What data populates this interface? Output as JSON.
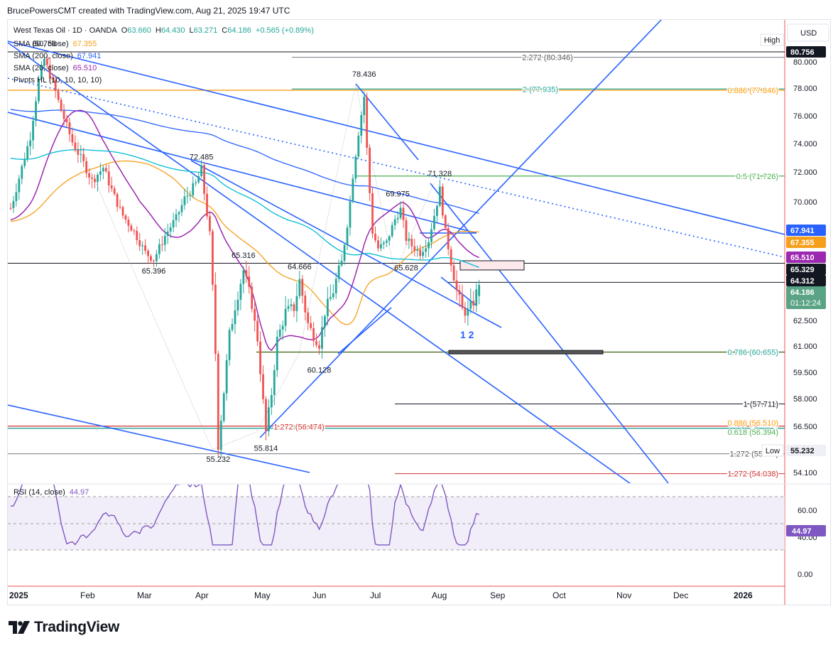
{
  "header": {
    "text": "BrucePowersCMT created with TradingView.com, Aug 21, 2025 19:47 UTC"
  },
  "brand": {
    "name": "TradingView",
    "logo_icon": "tradingview-logo-icon"
  },
  "colors": {
    "up": "#26a69a",
    "down": "#ef5350",
    "sma50": "#f59f1b",
    "sma200": "#2962ff",
    "sma20": "#9c27b0",
    "cyan": "#00bcd4",
    "trend": "#2962ff",
    "fib_orange": "#ff9800",
    "fib_green": "#4caf50",
    "fib_red": "#d32f2f",
    "rsi": "#7e57c2"
  },
  "legend": {
    "title": "West Texas Oil · 1D · OANDA",
    "o_label": "O",
    "o": "63.660",
    "h_label": "H",
    "h": "64.430",
    "l_label": "L",
    "l": "63.271",
    "c_label": "C",
    "c": "64.186",
    "chg": "+0.565 (+0.89%)",
    "sma50_label": "SMA (50, close)",
    "sma50_val": "67.355",
    "sma200_label": "SMA (200, close)",
    "sma200_val": "67.941",
    "sma20_label": "SMA (20, close)",
    "sma20_val": "65.510",
    "pivots_label": "Pivots HL (10, 10, 10, 10)"
  },
  "rsi_legend": {
    "label": "RSI (14, close)",
    "value": "44.97"
  },
  "chart_data": {
    "type": "candlestick",
    "symbol": "West Texas Oil",
    "interval": "1D",
    "exchange": "OANDA",
    "ohlc_last": {
      "open": 63.66,
      "high": 64.43,
      "low": 63.271,
      "close": 64.186,
      "change": 0.565,
      "change_pct": 0.89
    },
    "currency": "USD",
    "y_ticks": [
      80.0,
      78.0,
      76.0,
      74.0,
      72.0,
      70.0,
      62.5,
      61.0,
      59.5,
      58.0,
      56.5,
      54.1
    ],
    "x_ticks": [
      "2025",
      "Feb",
      "Mar",
      "Apr",
      "May",
      "Jun",
      "Jul",
      "Aug",
      "Sep",
      "Oct",
      "Nov",
      "Dec",
      "2026"
    ],
    "price_badges": [
      {
        "label": "80.756",
        "kind": "high"
      },
      {
        "label": "67.941",
        "kind": "sma200"
      },
      {
        "label": "67.355",
        "kind": "sma50"
      },
      {
        "label": "65.510",
        "kind": "sma20"
      },
      {
        "label": "65.329",
        "kind": "dark"
      },
      {
        "label": "64.312",
        "kind": "dark"
      },
      {
        "label": "64.186",
        "kind": "last"
      },
      {
        "label": "55.232",
        "kind": "low"
      }
    ],
    "countdown": "01:12:24",
    "high_tag": "High",
    "low_tag": "Low",
    "pivots": [
      {
        "label": "80.756",
        "t": 12,
        "price": 80.756,
        "pos": "above"
      },
      {
        "label": "72.485",
        "t": 68,
        "price": 72.485,
        "pos": "above"
      },
      {
        "label": "65.396",
        "t": 51,
        "price": 65.396,
        "pos": "below"
      },
      {
        "label": "65.316",
        "t": 83,
        "price": 65.316,
        "pos": "above"
      },
      {
        "label": "64.666",
        "t": 103,
        "price": 64.666,
        "pos": "above"
      },
      {
        "label": "55.232",
        "t": 74,
        "price": 55.232,
        "pos": "below"
      },
      {
        "label": "55.814",
        "t": 91,
        "price": 55.814,
        "pos": "below"
      },
      {
        "label": "60.128",
        "t": 110,
        "price": 60.128,
        "pos": "below"
      },
      {
        "label": "78.436",
        "t": 126,
        "price": 78.436,
        "pos": "above"
      },
      {
        "label": "69.975",
        "t": 138,
        "price": 69.975,
        "pos": "above"
      },
      {
        "label": "65.628",
        "t": 141,
        "price": 65.628,
        "pos": "below"
      },
      {
        "label": "71.328",
        "t": 153,
        "price": 71.328,
        "pos": "above"
      }
    ],
    "fib_levels": [
      {
        "label": "2.272 (80.346)",
        "price": 80.346,
        "color": "#555"
      },
      {
        "label": "2 (77.935)",
        "price": 77.935,
        "color": "#26a69a"
      },
      {
        "label": "0.886 (77.846)",
        "price": 77.846,
        "color": "#ff9800"
      },
      {
        "label": "0.5 (71.726)",
        "price": 71.726,
        "color": "#4caf50"
      },
      {
        "label": "0.786 (60.655)",
        "price": 60.655,
        "color": "#26a69a"
      },
      {
        "label": "1 (57.711)",
        "price": 57.711,
        "color": "#131722"
      },
      {
        "label": "1.272 (56.474)",
        "price": 56.474,
        "color": "#d32f2f"
      },
      {
        "label": "0.886 (56.510)",
        "price": 56.51,
        "color": "#ff9800"
      },
      {
        "label": "0.618 (56.394)",
        "price": 56.394,
        "color": "#4caf50"
      },
      {
        "label": "1.272 (55.0...)",
        "price": 55.05,
        "color": "#555"
      },
      {
        "label": "1.272 (54.038)",
        "price": 54.038,
        "color": "#d32f2f"
      }
    ],
    "wave_label": "1 2",
    "rsi": {
      "period": 14,
      "last": 44.97,
      "ticks": [
        60.0,
        40.0,
        0.0
      ],
      "overbought": 70,
      "oversold": 30
    }
  }
}
